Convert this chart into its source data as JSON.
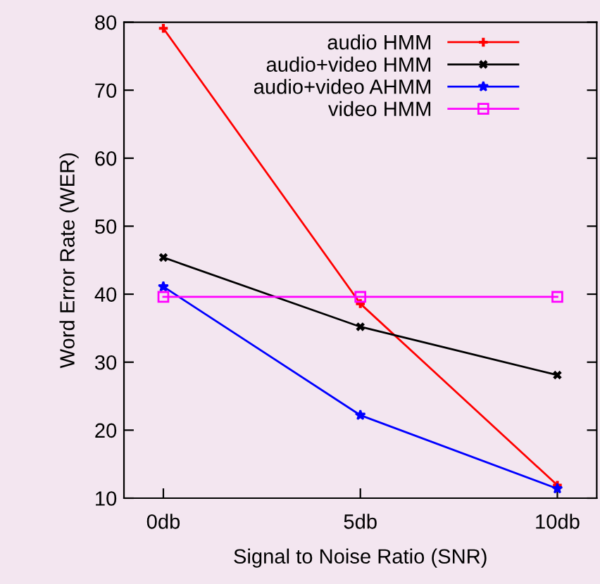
{
  "chart_data": {
    "type": "line",
    "xlabel": "Signal to Noise Ratio (SNR)",
    "ylabel": "Word Error Rate (WER)",
    "categories": [
      "0db",
      "5db",
      "10db"
    ],
    "series": [
      {
        "name": "audio HMM",
        "color": "#ff0000",
        "marker": "plus",
        "values": [
          79.1,
          38.6,
          11.9
        ]
      },
      {
        "name": "audio+video HMM",
        "color": "#000000",
        "marker": "cross",
        "values": [
          45.4,
          35.2,
          28.1
        ]
      },
      {
        "name": "audio+video AHMM",
        "color": "#0000ff",
        "marker": "star",
        "values": [
          41.1,
          22.2,
          11.4
        ]
      },
      {
        "name": "video HMM",
        "color": "#ff00ff",
        "marker": "square",
        "values": [
          39.6,
          39.6,
          39.6
        ]
      }
    ],
    "ylim": [
      10,
      80
    ],
    "yticks": [
      10,
      20,
      30,
      40,
      50,
      60,
      70,
      80
    ],
    "grid": false,
    "legend": "top right",
    "line_style": "solid"
  }
}
